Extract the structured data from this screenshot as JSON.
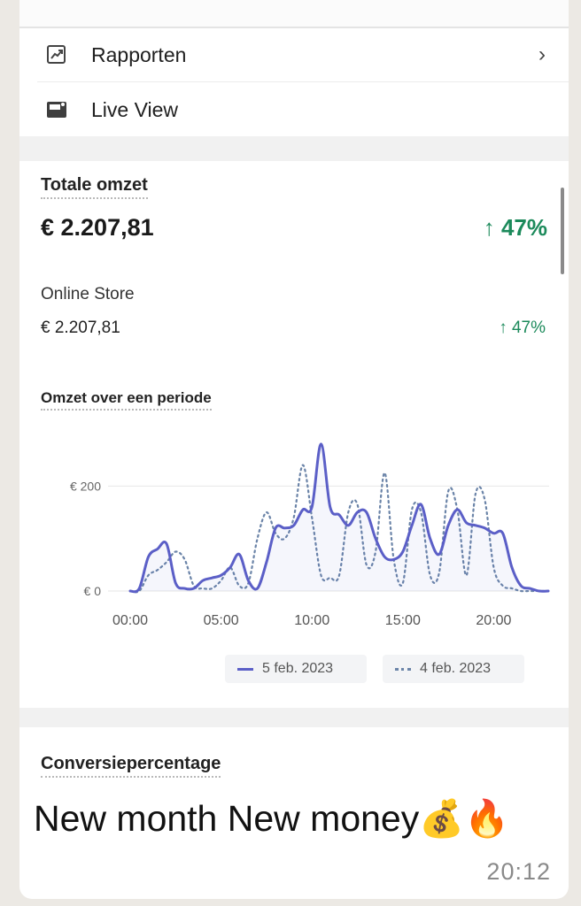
{
  "menu": {
    "items": [
      {
        "label": "Rapporten",
        "icon": "reports-icon",
        "has_chevron": true
      },
      {
        "label": "Live View",
        "icon": "live-view-icon",
        "has_chevron": false
      }
    ]
  },
  "sales": {
    "title": "Totale omzet",
    "total": "€ 2.207,81",
    "change": "↑ 47%",
    "channel_name": "Online Store",
    "channel_total": "€ 2.207,81",
    "channel_change": "↑ 47%"
  },
  "chart_data": {
    "type": "line",
    "title": "Omzet over een periode",
    "x_ticks": [
      "00:00",
      "05:00",
      "10:00",
      "15:00",
      "20:00"
    ],
    "y_ticks": [
      "€ 0",
      "€ 200"
    ],
    "ylim": [
      0,
      300
    ],
    "xlim": [
      0,
      23
    ],
    "grid": true,
    "legend_position": "bottom",
    "series": [
      {
        "name": "5 feb. 2023",
        "style": "solid",
        "color": "#5b5fc7",
        "x": [
          0,
          0.5,
          1,
          1.5,
          2,
          2.5,
          3,
          3.5,
          4,
          4.5,
          5,
          5.5,
          6,
          6.5,
          7,
          7.5,
          8,
          8.5,
          9,
          9.5,
          10,
          10.5,
          11,
          11.5,
          12,
          12.5,
          13,
          13.5,
          14,
          14.5,
          15,
          15.5,
          16,
          16.5,
          17,
          17.5,
          18,
          18.5,
          19,
          19.5,
          20,
          20.5,
          21,
          21.5,
          22,
          22.5,
          23
        ],
        "values": [
          0,
          5,
          65,
          80,
          90,
          15,
          5,
          5,
          20,
          25,
          30,
          45,
          70,
          20,
          5,
          55,
          120,
          120,
          125,
          155,
          160,
          280,
          160,
          145,
          125,
          150,
          150,
          100,
          65,
          60,
          75,
          125,
          165,
          100,
          70,
          125,
          155,
          130,
          125,
          120,
          110,
          110,
          45,
          10,
          5,
          0,
          0
        ]
      },
      {
        "name": "4 feb. 2023",
        "style": "dotted",
        "color": "#6b84a8",
        "x": [
          0,
          0.5,
          1,
          1.5,
          2,
          2.5,
          3,
          3.5,
          4,
          4.5,
          5,
          5.5,
          6,
          6.5,
          7,
          7.5,
          8,
          8.5,
          9,
          9.5,
          10,
          10.5,
          11,
          11.5,
          12,
          12.5,
          13,
          13.5,
          14,
          14.5,
          15,
          15.5,
          16,
          16.5,
          17,
          17.5,
          18,
          18.5,
          19,
          19.5,
          20,
          20.5,
          21,
          21.5,
          22,
          22.5,
          23
        ],
        "values": [
          0,
          0,
          30,
          40,
          55,
          75,
          60,
          10,
          5,
          5,
          20,
          45,
          10,
          15,
          100,
          150,
          110,
          100,
          140,
          240,
          140,
          30,
          25,
          30,
          150,
          165,
          50,
          75,
          225,
          60,
          15,
          155,
          150,
          30,
          35,
          190,
          155,
          30,
          185,
          175,
          45,
          10,
          5,
          0,
          0,
          0,
          0
        ]
      }
    ]
  },
  "next_section": {
    "title": "Conversiepercentage"
  },
  "message": {
    "text": "New month New money💰🔥",
    "time": "20:12"
  }
}
